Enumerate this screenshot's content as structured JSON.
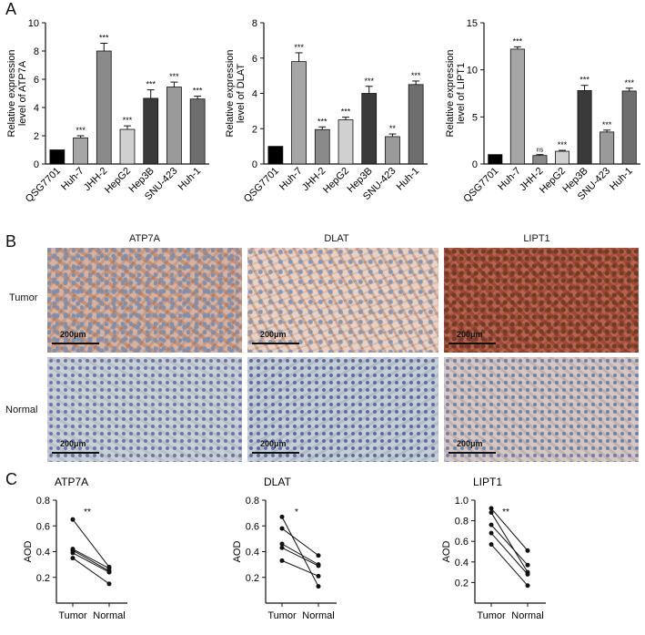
{
  "panels": {
    "a": "A",
    "b": "B",
    "c": "C"
  },
  "panel_a": {
    "charts": [
      {
        "ylabel_lines": [
          "Relative expression",
          "level of ATP7A"
        ]
      },
      {
        "ylabel_lines": [
          "Relative expression",
          "level of DLAT"
        ]
      },
      {
        "ylabel_lines": [
          "Relative expression",
          "level of LIPT1"
        ]
      }
    ]
  },
  "panel_b": {
    "columns": [
      "ATP7A",
      "DLAT",
      "LIPT1"
    ],
    "rows": [
      "Tumor",
      "Normal"
    ],
    "scale_label": "200μm",
    "colors": {
      "tumor_atp7a": "#c79a85",
      "tumor_dlat": "#d4b3a2",
      "tumor_lipt1": "#a9523a",
      "normal_bg": "#c4c7cf",
      "nuclei": "#5b78a6"
    }
  },
  "panel_c": {
    "charts": [
      {
        "title": "ATP7A"
      },
      {
        "title": "DLAT"
      },
      {
        "title": "LIPT1"
      }
    ]
  },
  "chart_data": [
    {
      "type": "bar",
      "categories": [
        "QSG7701",
        "Huh-7",
        "JHH-2",
        "HepG2",
        "Hep3B",
        "SNU-423",
        "Huh-1"
      ],
      "values": [
        1.0,
        1.85,
        8.0,
        2.45,
        4.65,
        5.45,
        4.6
      ],
      "errors": [
        0,
        0.15,
        0.55,
        0.25,
        0.6,
        0.35,
        0.2
      ],
      "significance": [
        "",
        "***",
        "***",
        "***",
        "***",
        "***",
        "***"
      ],
      "bar_colors": [
        "#000000",
        "#a6a6a6",
        "#8a8a8a",
        "#d0d0d0",
        "#3a3a3a",
        "#9a9a9a",
        "#6e6e6e"
      ],
      "ylim": [
        0,
        10
      ],
      "yticks": [
        0,
        2,
        4,
        6,
        8,
        10
      ],
      "xlabel": "",
      "ylabel": "Relative expression level of ATP7A"
    },
    {
      "type": "bar",
      "categories": [
        "QSG7701",
        "Huh-7",
        "JHH-2",
        "HepG2",
        "Hep3B",
        "SNU-423",
        "Huh-1"
      ],
      "values": [
        1.0,
        5.8,
        1.95,
        2.5,
        4.0,
        1.55,
        4.5
      ],
      "errors": [
        0,
        0.5,
        0.15,
        0.15,
        0.4,
        0.15,
        0.2
      ],
      "significance": [
        "",
        "***",
        "***",
        "***",
        "***",
        "**",
        "***"
      ],
      "bar_colors": [
        "#000000",
        "#a6a6a6",
        "#8a8a8a",
        "#d0d0d0",
        "#3a3a3a",
        "#9a9a9a",
        "#6e6e6e"
      ],
      "ylim": [
        0,
        8
      ],
      "yticks": [
        0,
        2,
        4,
        6,
        8
      ],
      "xlabel": "",
      "ylabel": "Relative expression level of DLAT"
    },
    {
      "type": "bar",
      "categories": [
        "QSG7701",
        "Huh-7",
        "JHH-2",
        "HepG2",
        "Hep3B",
        "SNU-423",
        "Huh-1"
      ],
      "values": [
        1.0,
        12.2,
        0.9,
        1.35,
        7.8,
        3.4,
        7.75
      ],
      "errors": [
        0,
        0.25,
        0.1,
        0.1,
        0.55,
        0.2,
        0.3
      ],
      "significance": [
        "",
        "***",
        "ns",
        "***",
        "***",
        "***",
        "***"
      ],
      "bar_colors": [
        "#000000",
        "#a6a6a6",
        "#8a8a8a",
        "#d0d0d0",
        "#3a3a3a",
        "#9a9a9a",
        "#6e6e6e"
      ],
      "ylim": [
        0,
        15
      ],
      "yticks": [
        0,
        5,
        10,
        15
      ],
      "xlabel": "",
      "ylabel": "Relative expression level of LIPT1"
    },
    {
      "type": "line",
      "title": "ATP7A",
      "categories": [
        "Tumor",
        "Normal"
      ],
      "pairs": [
        [
          0.65,
          0.28
        ],
        [
          0.42,
          0.27
        ],
        [
          0.41,
          0.25
        ],
        [
          0.39,
          0.24
        ],
        [
          0.35,
          0.15
        ]
      ],
      "significance": "**",
      "ylim": [
        0,
        0.8
      ],
      "yticks": [
        0.2,
        0.4,
        0.6,
        0.8
      ],
      "xlabel": "",
      "ylabel": "AOD"
    },
    {
      "type": "line",
      "title": "DLAT",
      "categories": [
        "Tumor",
        "Normal"
      ],
      "pairs": [
        [
          0.67,
          0.13
        ],
        [
          0.58,
          0.37
        ],
        [
          0.46,
          0.3
        ],
        [
          0.43,
          0.29
        ],
        [
          0.33,
          0.21
        ]
      ],
      "significance": "*",
      "ylim": [
        0,
        0.8
      ],
      "yticks": [
        0.2,
        0.4,
        0.6,
        0.8
      ],
      "xlabel": "",
      "ylabel": "AOD"
    },
    {
      "type": "line",
      "title": "LIPT1",
      "categories": [
        "Tumor",
        "Normal"
      ],
      "pairs": [
        [
          0.92,
          0.51
        ],
        [
          0.88,
          0.3
        ],
        [
          0.76,
          0.37
        ],
        [
          0.68,
          0.28
        ],
        [
          0.57,
          0.17
        ]
      ],
      "significance": "**",
      "ylim": [
        0,
        1.0
      ],
      "yticks": [
        0.2,
        0.4,
        0.6,
        0.8,
        1.0
      ],
      "xlabel": "",
      "ylabel": "AOD"
    }
  ]
}
